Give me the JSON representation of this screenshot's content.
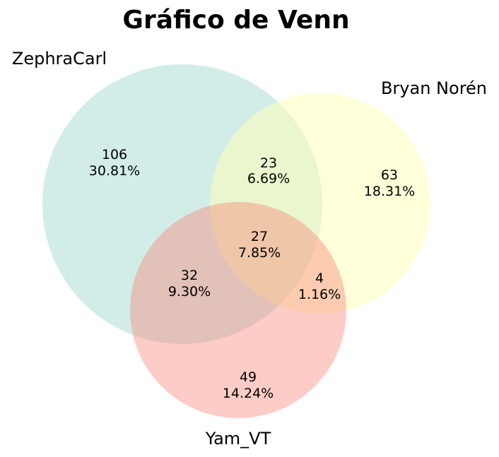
{
  "chart_data": {
    "type": "venn",
    "title": "Gráfico de Venn",
    "sets": [
      {
        "name": "ZephraCarl",
        "color": "#a6dcd2",
        "opacity": 0.5
      },
      {
        "name": "Bryan Norén",
        "color": "#ffffb3",
        "opacity": 0.5
      },
      {
        "name": "Yam_VT",
        "color": "#fb8072",
        "opacity": 0.4
      }
    ],
    "regions": [
      {
        "key": "A",
        "value": "106",
        "percent": "30.81%"
      },
      {
        "key": "B",
        "value": "63",
        "percent": "18.31%"
      },
      {
        "key": "C",
        "value": "49",
        "percent": "14.24%"
      },
      {
        "key": "AB",
        "value": "23",
        "percent": "6.69%"
      },
      {
        "key": "AC",
        "value": "32",
        "percent": "9.30%"
      },
      {
        "key": "BC",
        "value": "4",
        "percent": "1.16%"
      },
      {
        "key": "ABC",
        "value": "27",
        "percent": "7.85%"
      }
    ]
  }
}
